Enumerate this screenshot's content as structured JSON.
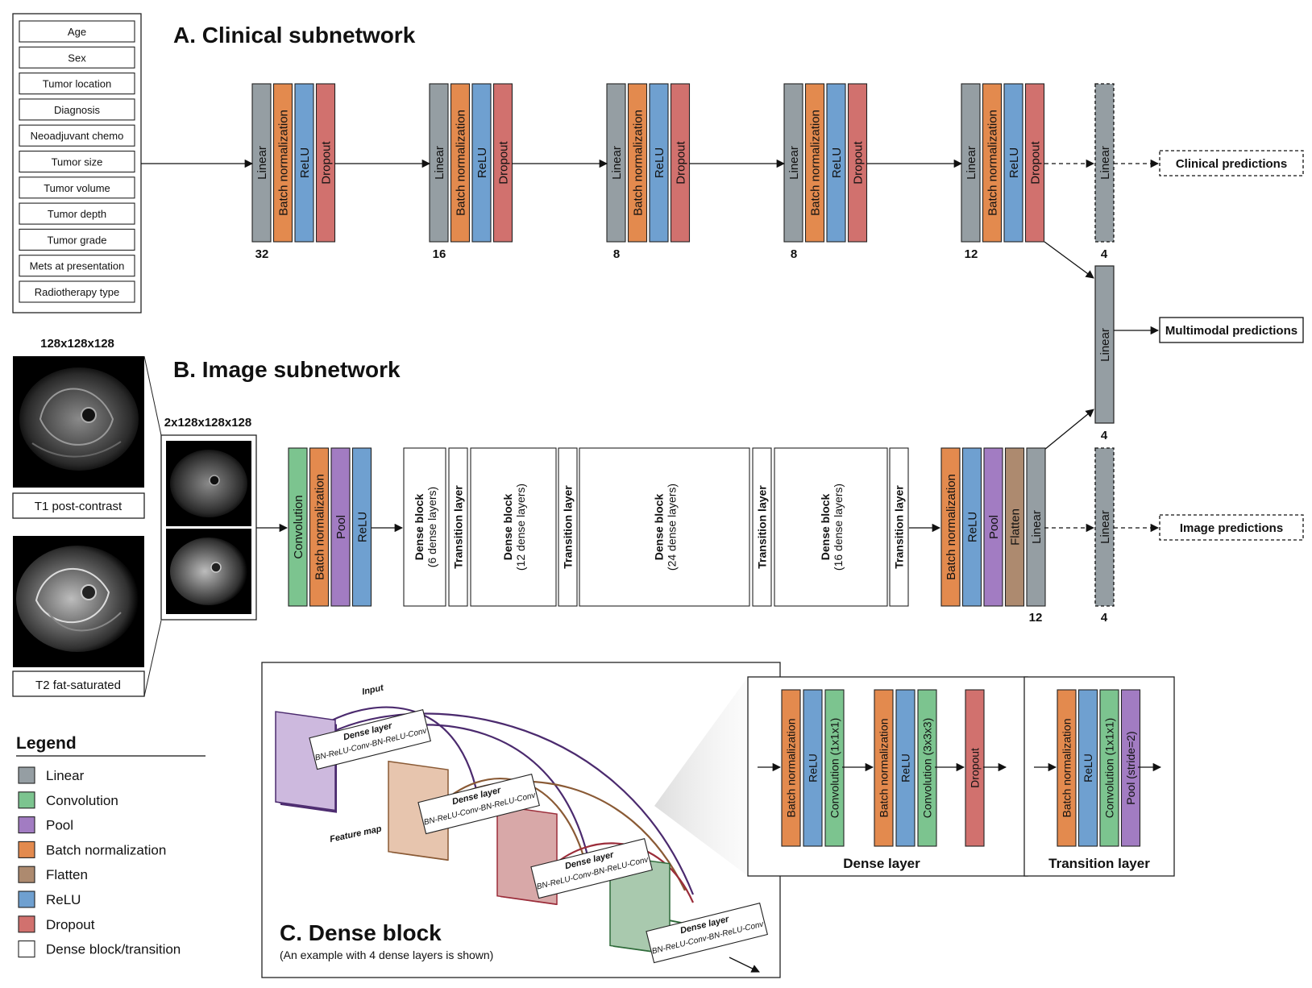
{
  "colors": {
    "linear": "#959ea3",
    "convolution": "#7cc48f",
    "pool": "#a27cc2",
    "batch_norm": "#e38a4e",
    "flatten": "#ad8a6f",
    "relu": "#6fa0d0",
    "dropout": "#d1716e",
    "dense": "#ffffff"
  },
  "clinical": {
    "title": "A. Clinical subnetwork",
    "inputs": [
      "Age",
      "Sex",
      "Tumor location",
      "Diagnosis",
      "Neoadjuvant chemo",
      "Tumor size",
      "Tumor volume",
      "Tumor depth",
      "Tumor grade",
      "Mets at presentation",
      "Radiotherapy type"
    ],
    "layer_labels": [
      "Linear",
      "Batch normalization",
      "ReLU",
      "Dropout"
    ],
    "block_sizes": [
      "32",
      "16",
      "8",
      "8",
      "12"
    ],
    "output_linear": {
      "label": "Linear",
      "size": "4"
    },
    "prediction": "Clinical predictions"
  },
  "multimodal": {
    "linear_label": "Linear",
    "size": "4",
    "prediction": "Multimodal predictions"
  },
  "image": {
    "title": "B. Image subnetwork",
    "input_dim": "128x128x128",
    "stack_dim": "2x128x128x128",
    "t1_label": "T1 post-contrast",
    "t2_label": "T2 fat-saturated",
    "stem_labels": [
      "Convolution",
      "Batch normalization",
      "Pool",
      "ReLU"
    ],
    "dense_blocks": [
      {
        "name": "Dense block",
        "sub": "(6 dense layers)"
      },
      {
        "name": "Dense block",
        "sub": "(12 dense layers)"
      },
      {
        "name": "Dense block",
        "sub": "(24 dense layers)"
      },
      {
        "name": "Dense block",
        "sub": "(16 dense layers)"
      }
    ],
    "transition_label": "Transition layer",
    "head_labels": [
      "Batch normalization",
      "ReLU",
      "Pool",
      "Flatten",
      "Linear"
    ],
    "head_size": "12",
    "output_linear": {
      "label": "Linear",
      "size": "4"
    },
    "prediction": "Image predictions"
  },
  "legend": {
    "title": "Legend",
    "items": [
      "Linear",
      "Convolution",
      "Pool",
      "Batch normalization",
      "Flatten",
      "ReLU",
      "Dropout",
      "Dense block/transition"
    ]
  },
  "dense_block": {
    "title": "C. Dense block",
    "subtitle": "(An example with 4 dense layers is shown)",
    "input_label": "Input",
    "feature_map_label": "Feature map",
    "layer_title": "Dense layer",
    "layer_ops": "BN-ReLU-Conv-BN-ReLU-Conv"
  },
  "dense_layer": {
    "title": "Dense layer",
    "labels": [
      "Batch normalization",
      "ReLU",
      "Convolution (1x1x1)",
      "Batch normalization",
      "ReLU",
      "Convolution (3x3x3)",
      "Dropout"
    ]
  },
  "transition_layer": {
    "title": "Transition layer",
    "labels": [
      "Batch normalization",
      "ReLU",
      "Convolution (1x1x1)",
      "Pool (stride=2)"
    ]
  }
}
